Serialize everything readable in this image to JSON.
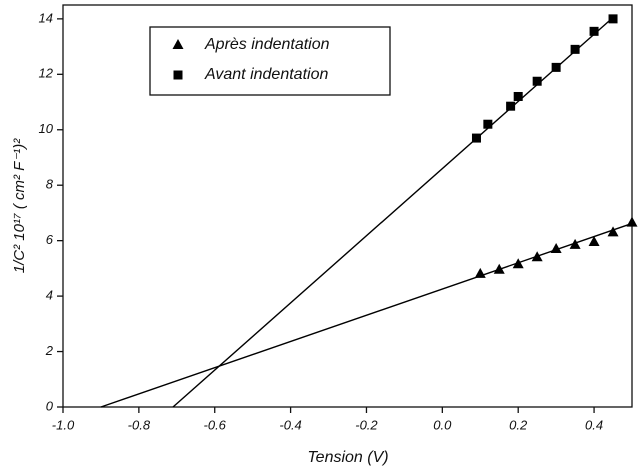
{
  "chart_data": {
    "type": "scatter",
    "x_label": "Tension (V)",
    "y_label": "1/C² 10¹⁷ ( cm² F⁻¹)²",
    "xlim": [
      -1.0,
      0.5
    ],
    "ylim": [
      0,
      14.5
    ],
    "xticks": [
      {
        "value": -1.0,
        "label": "-1.0"
      },
      -0.8,
      -0.6,
      -0.4,
      -0.2,
      {
        "value": 0,
        "label": "0.0"
      },
      0.2,
      0.4
    ],
    "yticks": [
      0,
      2,
      4,
      6,
      8,
      10,
      12,
      14
    ],
    "legend": "upper left",
    "series": [
      {
        "name": "Après indentation",
        "color": "#000000",
        "marker": "triangle",
        "x": [
          0.1,
          0.15,
          0.2,
          0.25,
          0.3,
          0.35,
          0.4,
          0.45,
          0.5
        ],
        "values": [
          4.8,
          4.95,
          5.15,
          5.4,
          5.7,
          5.85,
          5.95,
          6.3,
          6.65
        ],
        "fit": {
          "x": [
            -0.9,
            0.5
          ],
          "values": [
            0,
            6.62
          ]
        }
      },
      {
        "name": "Avant indentation",
        "color": "#000000",
        "marker": "square",
        "x": [
          0.09,
          0.12,
          0.18,
          0.2,
          0.25,
          0.3,
          0.35,
          0.4,
          0.45
        ],
        "values": [
          9.7,
          10.2,
          10.85,
          11.2,
          11.75,
          12.25,
          12.9,
          13.55,
          14.0
        ],
        "fit": {
          "x": [
            -0.71,
            0.45
          ],
          "values": [
            0,
            14.05
          ]
        }
      }
    ]
  }
}
